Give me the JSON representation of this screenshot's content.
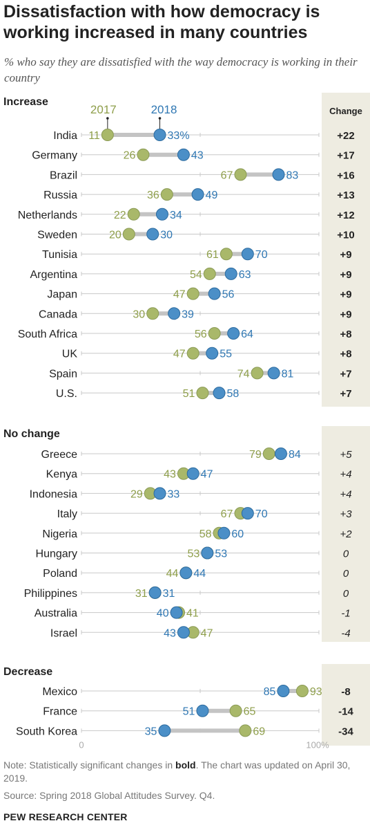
{
  "title": "Dissatisfaction with how democracy is working increased in many countries",
  "subtitle": "% who say they are dissatisfied with the way democracy is working in their country",
  "note_prefix": "Note: Statistically significant changes in ",
  "note_bold": "bold",
  "note_suffix": ". The chart was updated on April 30, 2019.",
  "source": "Source: Spring 2018 Global Attitudes Survey. Q4.",
  "credit": "PEW RESEARCH CENTER",
  "colors": {
    "y2017": "#A9B86A",
    "y2018": "#4B8FC7",
    "y2017_text": "#8E9E4A",
    "y2018_text": "#2F77B3",
    "change_bg": "#EEECE1"
  },
  "chart_data": {
    "type": "dot-range",
    "xlim": [
      0,
      100
    ],
    "x_tick_labels": [
      "0",
      "100%"
    ],
    "change_header": "Change",
    "legend": {
      "y2017": "2017",
      "y2018": "2018"
    },
    "groups": [
      {
        "name": "Increase",
        "bold": true,
        "rows": [
          {
            "country": "India",
            "v2017": 11,
            "v2018": 33,
            "change": "+22",
            "label2018": "33%"
          },
          {
            "country": "Germany",
            "v2017": 26,
            "v2018": 43,
            "change": "+17"
          },
          {
            "country": "Brazil",
            "v2017": 67,
            "v2018": 83,
            "change": "+16"
          },
          {
            "country": "Russia",
            "v2017": 36,
            "v2018": 49,
            "change": "+13"
          },
          {
            "country": "Netherlands",
            "v2017": 22,
            "v2018": 34,
            "change": "+12"
          },
          {
            "country": "Sweden",
            "v2017": 20,
            "v2018": 30,
            "change": "+10"
          },
          {
            "country": "Tunisia",
            "v2017": 61,
            "v2018": 70,
            "change": "+9"
          },
          {
            "country": "Argentina",
            "v2017": 54,
            "v2018": 63,
            "change": "+9"
          },
          {
            "country": "Japan",
            "v2017": 47,
            "v2018": 56,
            "change": "+9"
          },
          {
            "country": "Canada",
            "v2017": 30,
            "v2018": 39,
            "change": "+9"
          },
          {
            "country": "South Africa",
            "v2017": 56,
            "v2018": 64,
            "change": "+8"
          },
          {
            "country": "UK",
            "v2017": 47,
            "v2018": 55,
            "change": "+8"
          },
          {
            "country": "Spain",
            "v2017": 74,
            "v2018": 81,
            "change": "+7"
          },
          {
            "country": "U.S.",
            "v2017": 51,
            "v2018": 58,
            "change": "+7"
          }
        ]
      },
      {
        "name": "No change",
        "bold": false,
        "rows": [
          {
            "country": "Greece",
            "v2017": 79,
            "v2018": 84,
            "change": "+5"
          },
          {
            "country": "Kenya",
            "v2017": 43,
            "v2018": 47,
            "change": "+4"
          },
          {
            "country": "Indonesia",
            "v2017": 29,
            "v2018": 33,
            "change": "+4"
          },
          {
            "country": "Italy",
            "v2017": 67,
            "v2018": 70,
            "change": "+3"
          },
          {
            "country": "Nigeria",
            "v2017": 58,
            "v2018": 60,
            "change": "+2"
          },
          {
            "country": "Hungary",
            "v2017": 53,
            "v2018": 53,
            "change": "0"
          },
          {
            "country": "Poland",
            "v2017": 44,
            "v2018": 44,
            "change": "0"
          },
          {
            "country": "Philippines",
            "v2017": 31,
            "v2018": 31,
            "change": "0"
          },
          {
            "country": "Australia",
            "v2017": 41,
            "v2018": 40,
            "change": "-1"
          },
          {
            "country": "Israel",
            "v2017": 47,
            "v2018": 43,
            "change": "-4"
          }
        ]
      },
      {
        "name": "Decrease",
        "bold": true,
        "rows": [
          {
            "country": "Mexico",
            "v2017": 93,
            "v2018": 85,
            "change": "-8"
          },
          {
            "country": "France",
            "v2017": 65,
            "v2018": 51,
            "change": "-14"
          },
          {
            "country": "South Korea",
            "v2017": 69,
            "v2018": 35,
            "change": "-34"
          }
        ]
      }
    ]
  }
}
